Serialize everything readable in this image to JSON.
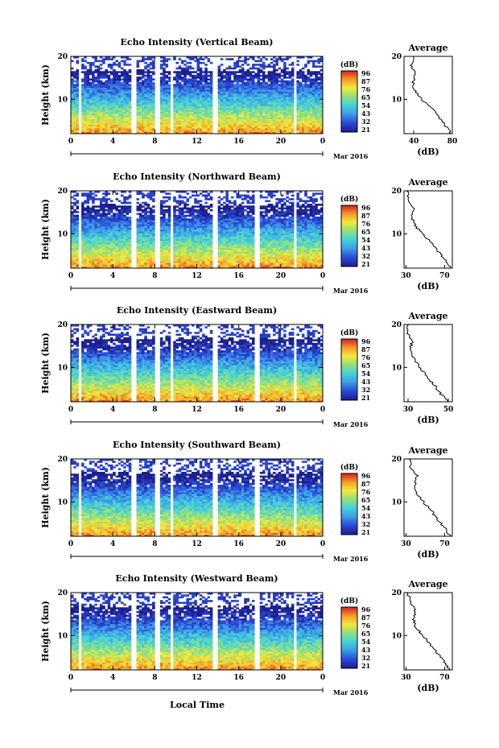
{
  "figure": {
    "xlabel": "Local Time",
    "date_label": "Mar 2016",
    "ylabel": "Height (km)",
    "colorbar_unit": "(dB)",
    "avg_title": "Average",
    "avg_xlabel": "(dB)"
  },
  "chart_data": [
    {
      "type": "heatmap",
      "title": "Echo Intensity (Vertical Beam)",
      "x_ticks": [
        "0",
        "4",
        "8",
        "12",
        "16",
        "20",
        "0"
      ],
      "x_range": [
        0,
        24
      ],
      "y_ticks": [
        "20",
        "10"
      ],
      "ylim": [
        2,
        20
      ],
      "colorbar_ticks": [
        "96",
        "87",
        "76",
        "65",
        "54",
        "43",
        "32",
        "21"
      ],
      "colorbar_range": [
        21,
        96
      ],
      "gaps_hours": [
        0.8,
        1.1,
        5.8,
        6.2,
        8.0,
        8.4,
        9.4,
        9.8,
        13.6,
        14.1,
        21.2,
        21.6
      ],
      "average_profile": {
        "x_ticks": [
          "40",
          "80"
        ],
        "xlim": [
          30,
          80
        ],
        "heights_km": [
          2,
          4,
          6,
          8,
          10,
          12,
          14,
          16,
          18,
          20
        ],
        "values_db": [
          79,
          72,
          66,
          58,
          48,
          41,
          39,
          42,
          37,
          40
        ]
      }
    },
    {
      "type": "heatmap",
      "title": "Echo Intensity (Northward Beam)",
      "x_ticks": [
        "0",
        "4",
        "8",
        "12",
        "16",
        "20",
        "0"
      ],
      "x_range": [
        0,
        24
      ],
      "y_ticks": [
        "20",
        "10"
      ],
      "ylim": [
        2,
        20
      ],
      "colorbar_ticks": [
        "96",
        "87",
        "76",
        "65",
        "54",
        "43",
        "32",
        "21"
      ],
      "colorbar_range": [
        21,
        96
      ],
      "gaps_hours": [
        0.8,
        1.1,
        5.8,
        6.2,
        8.0,
        8.4,
        9.4,
        9.8,
        13.6,
        14.1,
        17.6,
        17.9,
        21.2,
        21.6
      ],
      "average_profile": {
        "x_ticks": [
          "30",
          "70"
        ],
        "xlim": [
          28,
          78
        ],
        "heights_km": [
          2,
          4,
          6,
          8,
          10,
          12,
          14,
          16,
          18,
          20
        ],
        "values_db": [
          77,
          70,
          63,
          56,
          47,
          39,
          36,
          38,
          33,
          31
        ]
      }
    },
    {
      "type": "heatmap",
      "title": "Echo Intensity (Eastward Beam)",
      "x_ticks": [
        "0",
        "4",
        "8",
        "12",
        "16",
        "20",
        "0"
      ],
      "x_range": [
        0,
        24
      ],
      "y_ticks": [
        "20",
        "10"
      ],
      "ylim": [
        2,
        20
      ],
      "colorbar_ticks": [
        "96",
        "87",
        "76",
        "65",
        "54",
        "43",
        "32",
        "21"
      ],
      "colorbar_range": [
        21,
        96
      ],
      "gaps_hours": [
        0.8,
        1.1,
        5.8,
        6.2,
        8.0,
        8.4,
        9.4,
        9.8,
        13.6,
        14.1,
        17.6,
        17.9,
        21.2,
        21.6
      ],
      "average_profile": {
        "x_ticks": [
          "30",
          "50"
        ],
        "xlim": [
          28,
          52
        ],
        "heights_km": [
          2,
          4,
          6,
          8,
          10,
          12,
          14,
          16,
          18,
          20
        ],
        "values_db": [
          50,
          46,
          43,
          39,
          36,
          33,
          31,
          32,
          30,
          30
        ]
      }
    },
    {
      "type": "heatmap",
      "title": "Echo Intensity (Southward Beam)",
      "x_ticks": [
        "0",
        "4",
        "8",
        "12",
        "16",
        "20",
        "0"
      ],
      "x_range": [
        0,
        24
      ],
      "y_ticks": [
        "20",
        "10"
      ],
      "ylim": [
        2,
        20
      ],
      "colorbar_ticks": [
        "96",
        "87",
        "76",
        "65",
        "54",
        "43",
        "32",
        "21"
      ],
      "colorbar_range": [
        21,
        96
      ],
      "gaps_hours": [
        0.8,
        1.1,
        5.8,
        6.2,
        8.0,
        8.4,
        9.4,
        9.8,
        13.6,
        14.1,
        17.6,
        17.9,
        21.2,
        21.6
      ],
      "average_profile": {
        "x_ticks": [
          "30",
          "70"
        ],
        "xlim": [
          28,
          78
        ],
        "heights_km": [
          2,
          4,
          6,
          8,
          10,
          12,
          14,
          16,
          18,
          20
        ],
        "values_db": [
          76,
          70,
          62,
          56,
          48,
          41,
          39,
          42,
          35,
          33
        ]
      }
    },
    {
      "type": "heatmap",
      "title": "Echo Intensity (Westward Beam)",
      "x_ticks": [
        "0",
        "4",
        "8",
        "12",
        "16",
        "20",
        "0"
      ],
      "x_range": [
        0,
        24
      ],
      "y_ticks": [
        "20",
        "10"
      ],
      "ylim": [
        2,
        20
      ],
      "colorbar_ticks": [
        "96",
        "87",
        "76",
        "65",
        "54",
        "43",
        "32",
        "21"
      ],
      "colorbar_range": [
        21,
        96
      ],
      "gaps_hours": [
        0.8,
        1.1,
        5.8,
        6.2,
        8.0,
        8.4,
        9.4,
        9.8,
        13.6,
        14.1,
        17.6,
        17.9,
        21.2,
        21.6
      ],
      "average_profile": {
        "x_ticks": [
          "30",
          "70"
        ],
        "xlim": [
          28,
          78
        ],
        "heights_km": [
          2,
          4,
          6,
          8,
          10,
          12,
          14,
          16,
          18,
          20
        ],
        "values_db": [
          75,
          69,
          62,
          55,
          47,
          40,
          38,
          40,
          34,
          32
        ]
      }
    }
  ]
}
